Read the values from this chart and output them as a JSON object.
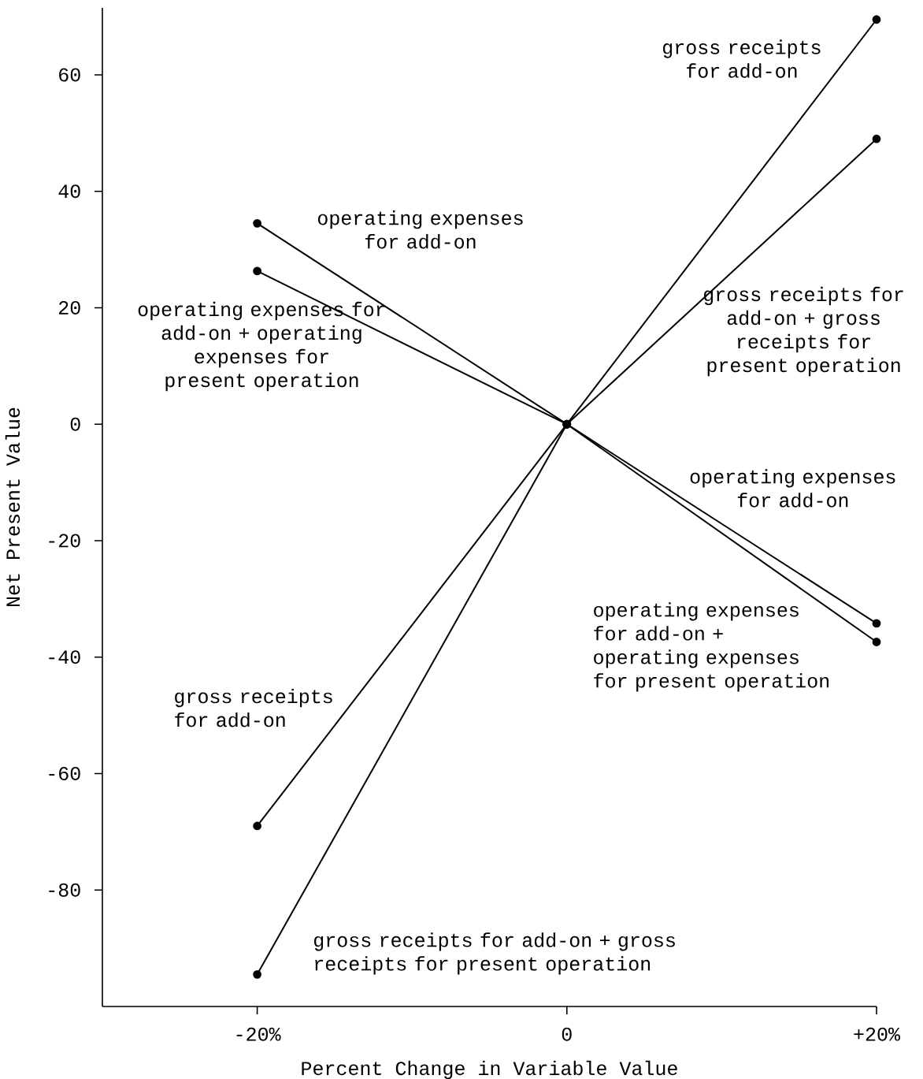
{
  "chart_data": {
    "type": "line",
    "xlabel": "Percent Change in Variable Value",
    "ylabel": "Net Present Value",
    "x": [
      -20,
      0,
      20
    ],
    "series": [
      {
        "color": "#000000",
        "values": [
          -69,
          0,
          69.5
        ]
      },
      {
        "color": "#000000",
        "values": [
          -94.5,
          0,
          49
        ]
      },
      {
        "color": "#000000",
        "values": [
          34.5,
          0,
          -34.2
        ]
      },
      {
        "color": "#000000",
        "values": [
          26.3,
          0,
          -37.4
        ]
      }
    ],
    "xlim": [
      -30,
      20
    ],
    "ylim": [
      -100,
      71.5
    ],
    "xticks": [
      {
        "value": -20,
        "label": "-20%"
      },
      0,
      {
        "value": 20,
        "label": "+20%"
      }
    ],
    "yticks": [
      -80,
      -60,
      -40,
      -20,
      0,
      20,
      40,
      60
    ],
    "marker": "circle",
    "line_style": "solid",
    "annotations": [
      "gross receipts for add-on",
      "operating expenses for add-on",
      "operating expenses for add-on + operating expenses for present operation",
      "gross receipts for add-on + gross receipts for present operation",
      "operating expenses for add-on",
      "operating expenses for add-on + operating expenses for present operation",
      "gross receipts for add-on",
      "gross receipts for add-on + gross receipts for present operation"
    ]
  }
}
